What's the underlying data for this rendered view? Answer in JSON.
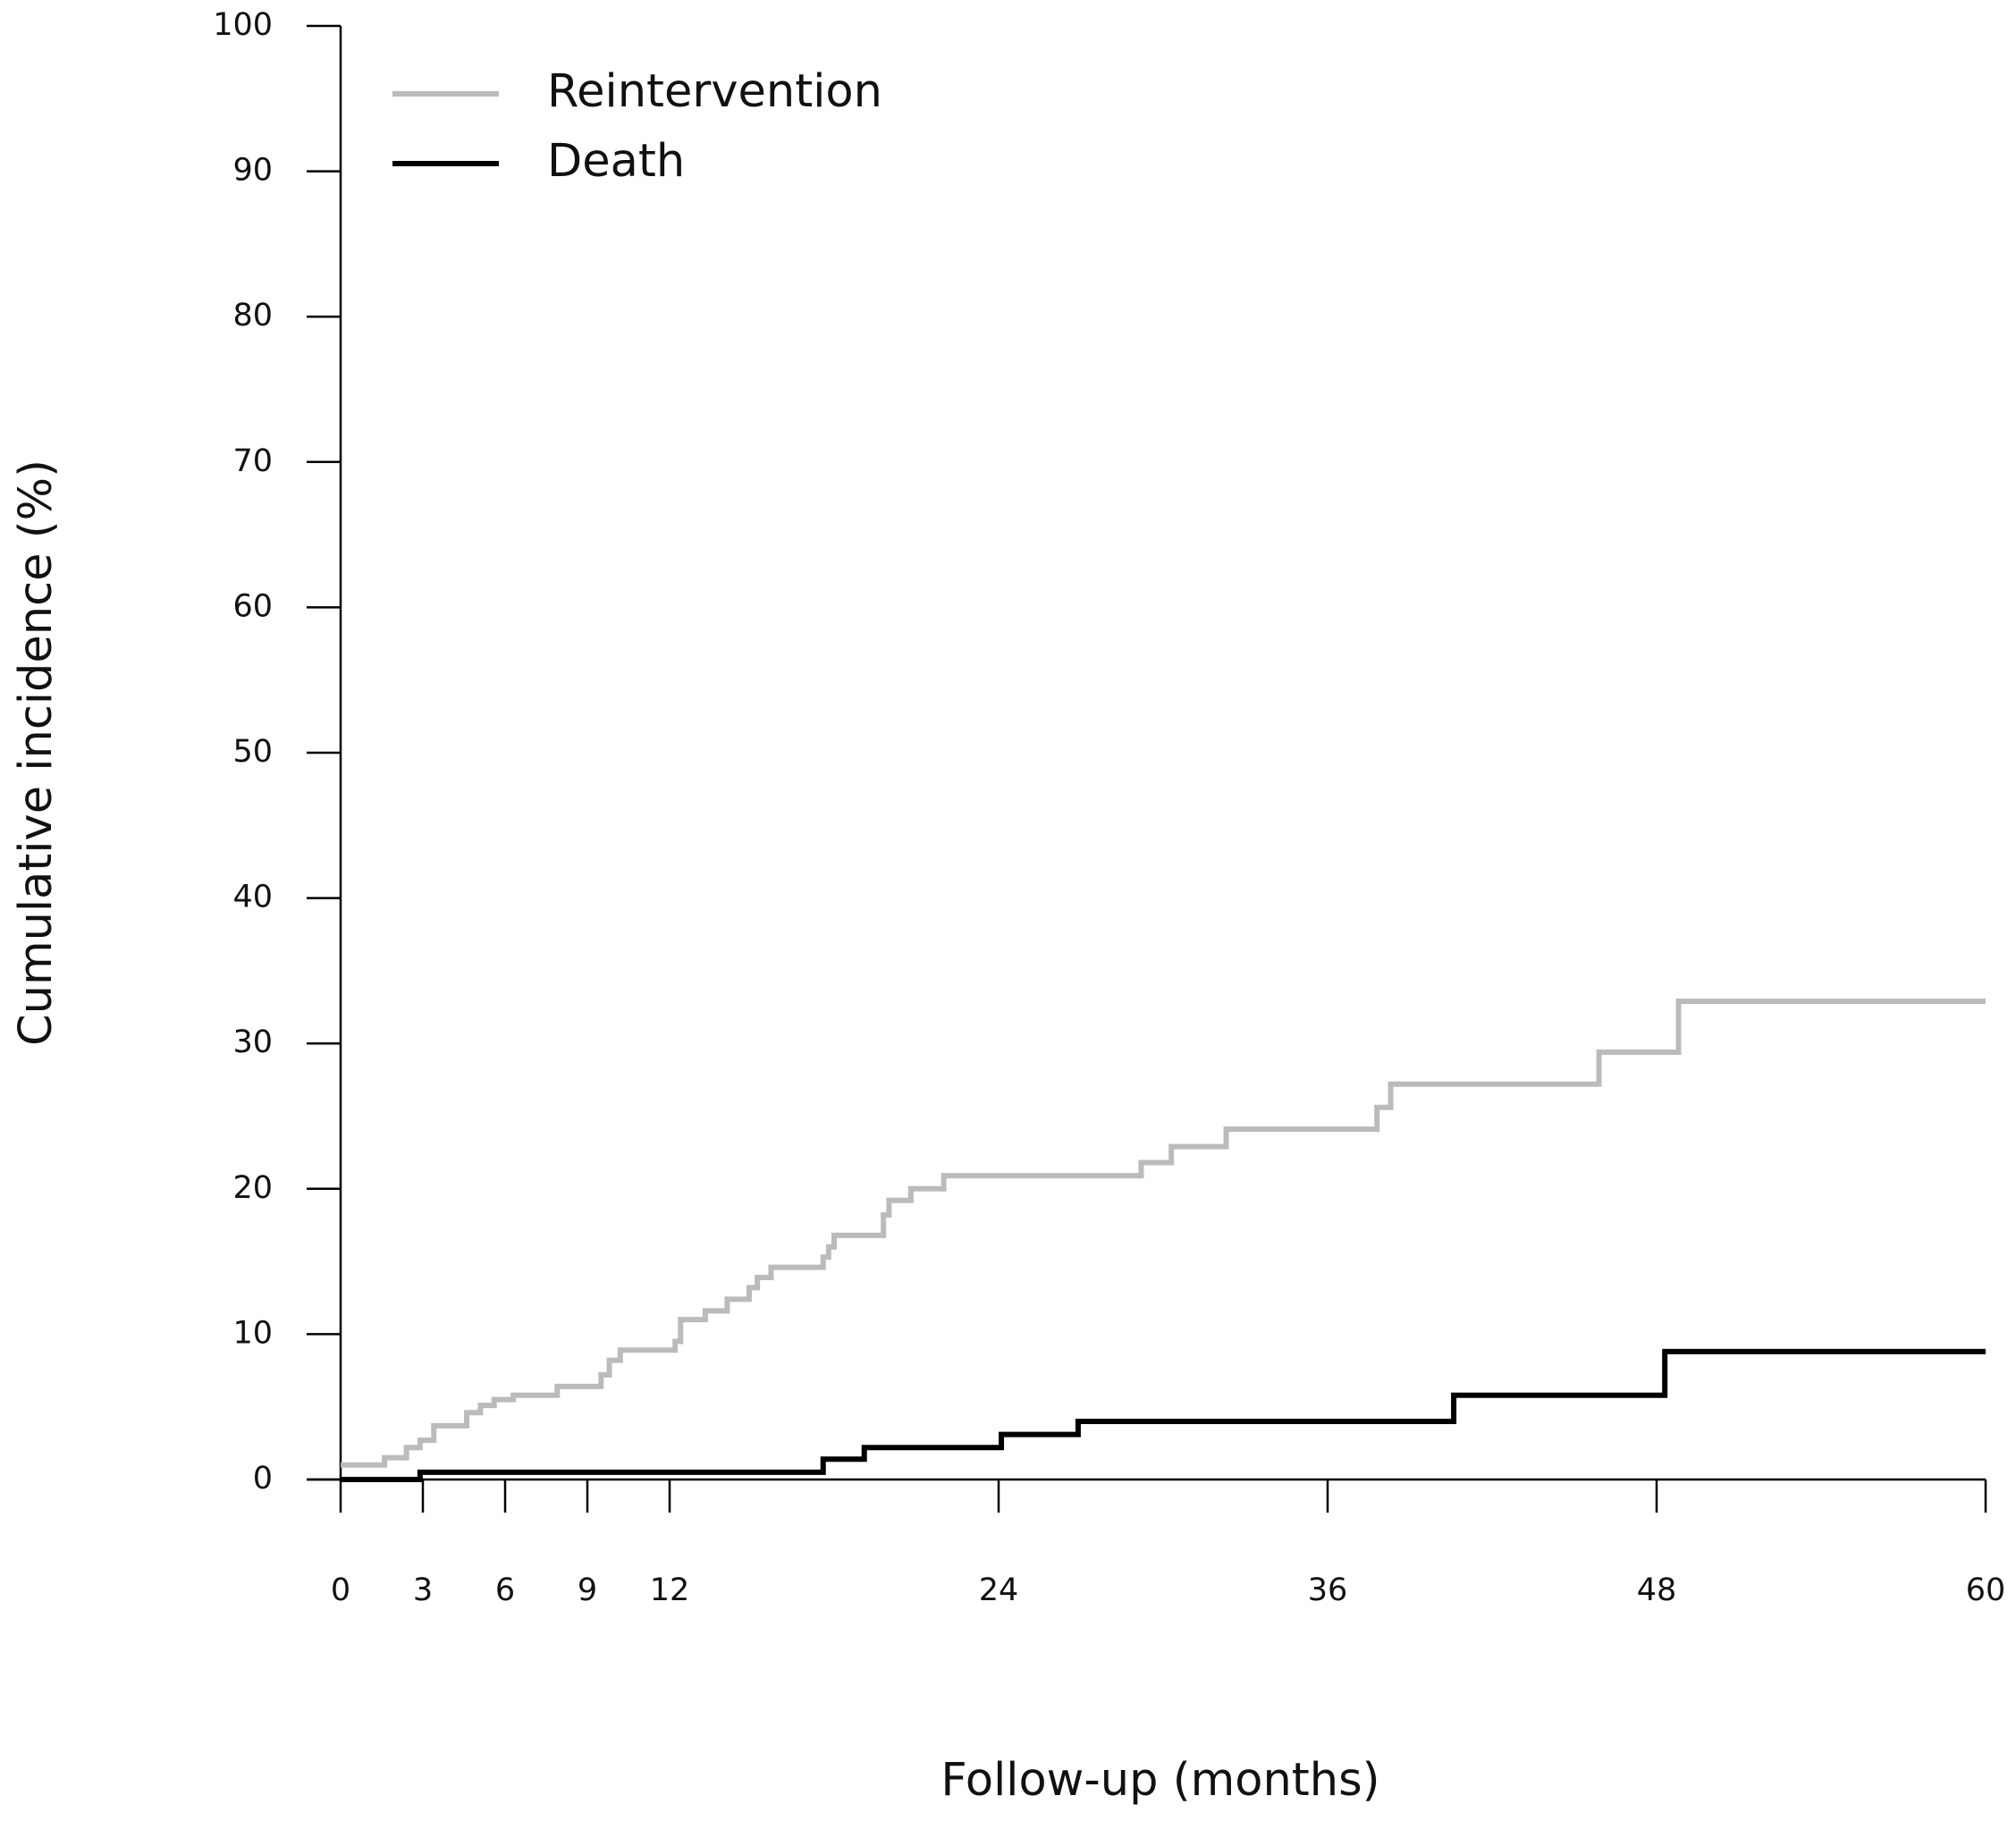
{
  "chart_data": {
    "type": "line",
    "step": true,
    "x_label": "Follow-up (months)",
    "y_label": "Cumulative incidence (%)",
    "xlim": [
      0,
      60
    ],
    "ylim": [
      0,
      100
    ],
    "xticks": [
      0,
      3,
      6,
      9,
      12,
      24,
      36,
      48,
      60
    ],
    "yticks": [
      0,
      10,
      20,
      30,
      40,
      50,
      60,
      70,
      80,
      90,
      100
    ],
    "grid": false,
    "legend": "top-left",
    "series": [
      {
        "name": "Reintervention",
        "color": "#bbbbbb",
        "x": [
          0,
          1.6,
          2.4,
          2.9,
          3.4,
          4.6,
          5.1,
          5.6,
          6.3,
          7.9,
          9.5,
          9.8,
          10.2,
          12.2,
          12.4,
          13.3,
          14.1,
          14.9,
          15.2,
          15.7,
          17.6,
          17.8,
          18.0,
          19.8,
          20.0,
          20.8,
          22.0,
          29.2,
          30.3,
          32.3,
          37.8,
          38.3,
          45.9,
          48.8,
          60
        ],
        "values": [
          1.0,
          1.5,
          2.2,
          2.7,
          3.7,
          4.6,
          5.1,
          5.5,
          5.8,
          6.4,
          7.2,
          8.2,
          8.9,
          9.5,
          11.0,
          11.6,
          12.4,
          13.2,
          13.9,
          14.6,
          15.3,
          16.0,
          16.8,
          18.2,
          19.2,
          20.0,
          20.9,
          21.8,
          22.9,
          24.1,
          25.6,
          27.2,
          29.4,
          32.9,
          32.9
        ]
      },
      {
        "name": "Death",
        "color": "#000000",
        "x": [
          0,
          2.9,
          17.6,
          19.1,
          24.1,
          26.9,
          40.6,
          48.3,
          60
        ],
        "values": [
          0,
          0.5,
          1.4,
          2.2,
          3.1,
          4.0,
          5.8,
          8.8,
          8.8
        ]
      }
    ]
  }
}
